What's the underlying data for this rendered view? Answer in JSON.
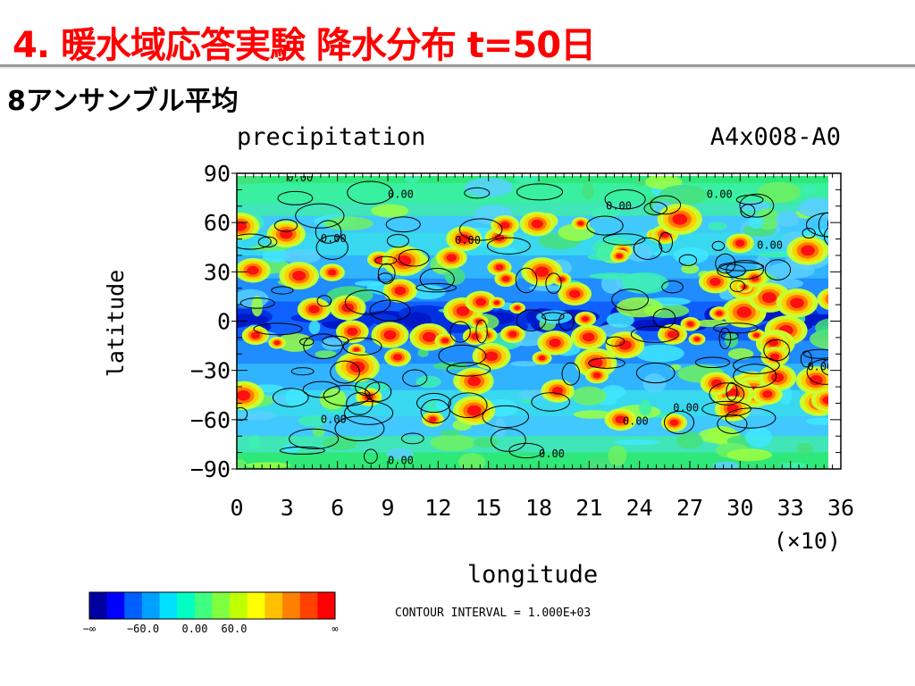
{
  "slide": {
    "title": "4. 暖水域応答実験 降水分布 t=50日",
    "subtitle": "8アンサンブル平均"
  },
  "chart_data": {
    "type": "heatmap",
    "title_left": "precipitation",
    "title_right": "A4x008-A0",
    "xlabel": "longitude",
    "ylabel": "latitude",
    "x_scale_note": "(×10)",
    "xlim": [
      0,
      36
    ],
    "ylim": [
      -90,
      90
    ],
    "x_ticks": [
      "0",
      "3",
      "6",
      "9",
      "12",
      "15",
      "18",
      "21",
      "24",
      "27",
      "30",
      "33",
      "36"
    ],
    "y_ticks": [
      "90",
      "60",
      "30",
      "0",
      "−30",
      "−60",
      "−90"
    ],
    "y_tick_values": [
      90,
      60,
      30,
      0,
      -30,
      -60,
      -90
    ],
    "contour_label": "0.00",
    "contour_interval_text": "CONTOUR INTERVAL = 1.000E+03",
    "colorbar": {
      "colors": [
        "#0000a0",
        "#0000ff",
        "#0060ff",
        "#00a0ff",
        "#00e0ff",
        "#00ffc0",
        "#40ff80",
        "#80ff40",
        "#c0ff00",
        "#ffff00",
        "#ffc000",
        "#ff8000",
        "#ff4000",
        "#ff0000"
      ],
      "labels": [
        "−∞",
        "−60.0",
        "0.00",
        "60.0",
        "∞"
      ]
    },
    "description": "Equatorial dry band (blue) near latitude 0 with scattered high-precipitation cells (red/yellow) in the tropics and mid-latitudes"
  }
}
